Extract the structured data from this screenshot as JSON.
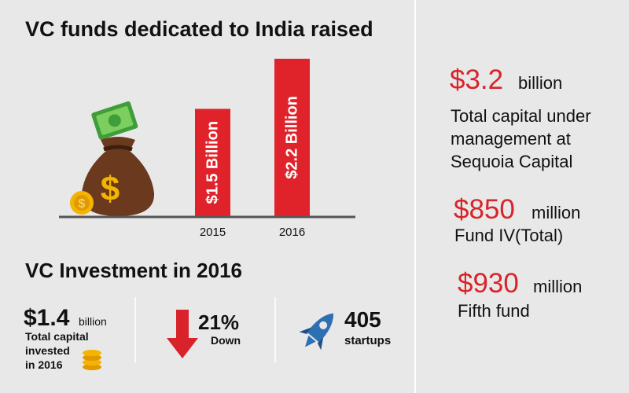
{
  "chart_data": {
    "type": "bar",
    "title": "VC funds dedicated to India raised",
    "categories": [
      "2015",
      "2016"
    ],
    "values": [
      1.5,
      2.2
    ],
    "value_labels": [
      "$1.5 Billion",
      "$2.2 Billion"
    ],
    "color": "#e0232a"
  },
  "investment": {
    "title": "VC Investment in 2016",
    "stats": [
      {
        "value": "$1.4",
        "unit": "billion",
        "lines": [
          "Total capital",
          "invested",
          "in 2016"
        ]
      },
      {
        "value": "21%",
        "lines": [
          "Down"
        ]
      },
      {
        "value": "405",
        "lines": [
          "startups"
        ]
      }
    ]
  },
  "highlights": [
    {
      "value": "$3.2",
      "unit": "billion",
      "lines": [
        "Total capital under",
        "management at",
        "Sequoia Capital"
      ]
    },
    {
      "value": "$850",
      "unit": "million",
      "lines": [
        "Fund IV(Total)"
      ]
    },
    {
      "value": "$930",
      "unit": "million",
      "lines": [
        "Fifth fund"
      ]
    }
  ]
}
